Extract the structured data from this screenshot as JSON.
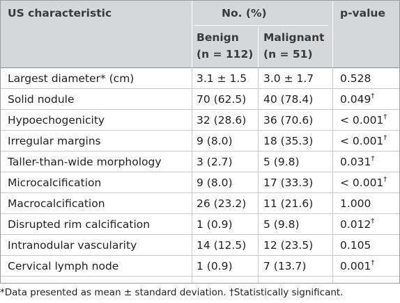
{
  "header": {
    "characteristic": "US characteristic",
    "group": "No. (%)",
    "p_value": "p-value",
    "benign_line1": "Benign",
    "benign_line2": "(n = 112)",
    "malignant_line1": "Malignant",
    "malignant_line2": "(n = 51)"
  },
  "rows": [
    {
      "label": "Largest diameter* (cm)",
      "benign": "3.1 ± 1.5",
      "malignant": "3.0 ± 1.7",
      "p": "0.528",
      "sig": ""
    },
    {
      "label": "Solid nodule",
      "benign": "70 (62.5)",
      "malignant": "40 (78.4)",
      "p": "0.049",
      "sig": "†"
    },
    {
      "label": "Hypoechogenicity",
      "benign": "32 (28.6)",
      "malignant": "36 (70.6)",
      "p": "< 0.001",
      "sig": "†"
    },
    {
      "label": "Irregular margins",
      "benign": "9 (8.0)",
      "malignant": "18 (35.3)",
      "p": "< 0.001",
      "sig": "†"
    },
    {
      "label": "Taller-than-wide morphology",
      "benign": "3 (2.7)",
      "malignant": "5 (9.8)",
      "p": "0.031",
      "sig": "†"
    },
    {
      "label": "Microcalcification",
      "benign": "9 (8.0)",
      "malignant": "17 (33.3)",
      "p": "< 0.001",
      "sig": "†"
    },
    {
      "label": "Macrocalcification",
      "benign": "26 (23.2)",
      "malignant": "11 (21.6)",
      "p": "1.000",
      "sig": ""
    },
    {
      "label": "Disrupted rim calcification",
      "benign": "1 (0.9)",
      "malignant": "5 (9.8)",
      "p": "0.012",
      "sig": "†"
    },
    {
      "label": "Intranodular vascularity",
      "benign": "14 (12.5)",
      "malignant": "12 (23.5)",
      "p": "0.105",
      "sig": ""
    },
    {
      "label": "Cervical lymph node",
      "benign": "1 (0.9)",
      "malignant": "7 (13.7)",
      "p": "0.001",
      "sig": "†"
    }
  ],
  "footnote": "*Data presented as mean ± standard deviation. †Statistically significant."
}
